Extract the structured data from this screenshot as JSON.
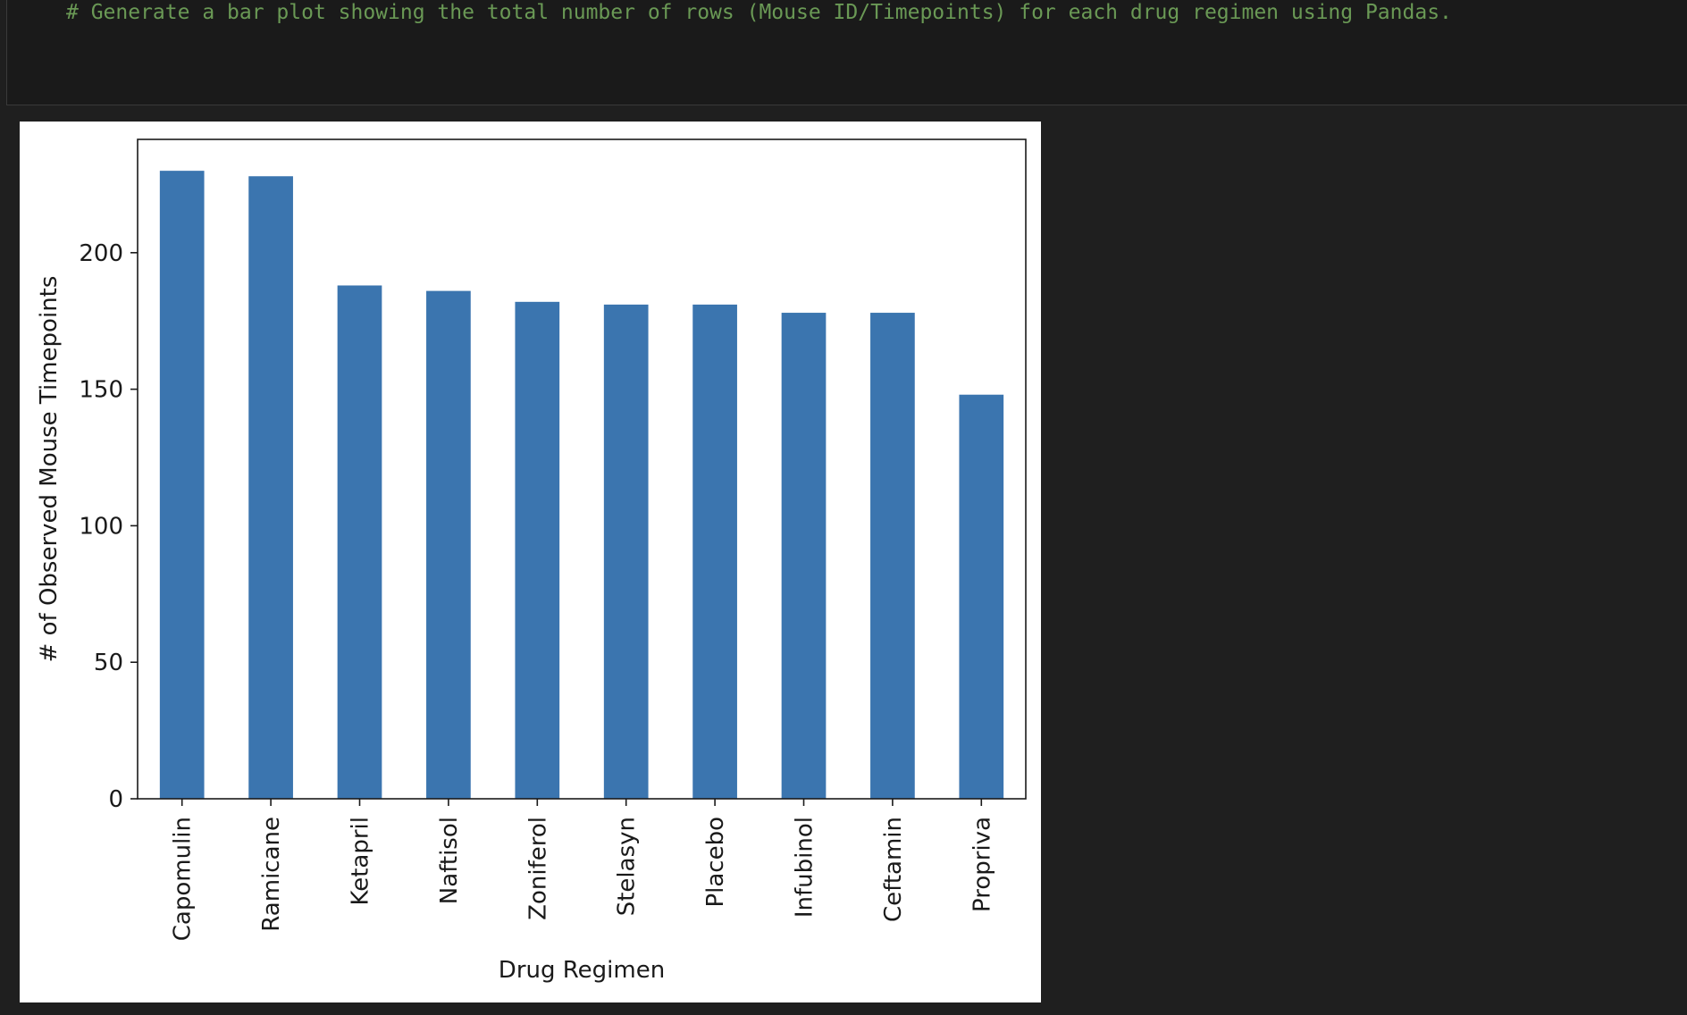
{
  "cell": {
    "code_comment": "# Generate a bar plot showing the total number of rows (Mouse ID/Timepoints) for each drug regimen using Pandas."
  },
  "chart_data": {
    "type": "bar",
    "categories": [
      "Capomulin",
      "Ramicane",
      "Ketapril",
      "Naftisol",
      "Zoniferol",
      "Stelasyn",
      "Placebo",
      "Infubinol",
      "Ceftamin",
      "Propriva"
    ],
    "values": [
      230,
      228,
      188,
      186,
      182,
      181,
      181,
      178,
      178,
      148
    ],
    "xlabel": "Drug Regimen",
    "ylabel": "# of Observed Mouse Timepoints",
    "ylim": [
      0,
      241.5
    ],
    "yticks": [
      0,
      50,
      100,
      150,
      200
    ],
    "grid": false,
    "bar_color": "#3b75af"
  }
}
